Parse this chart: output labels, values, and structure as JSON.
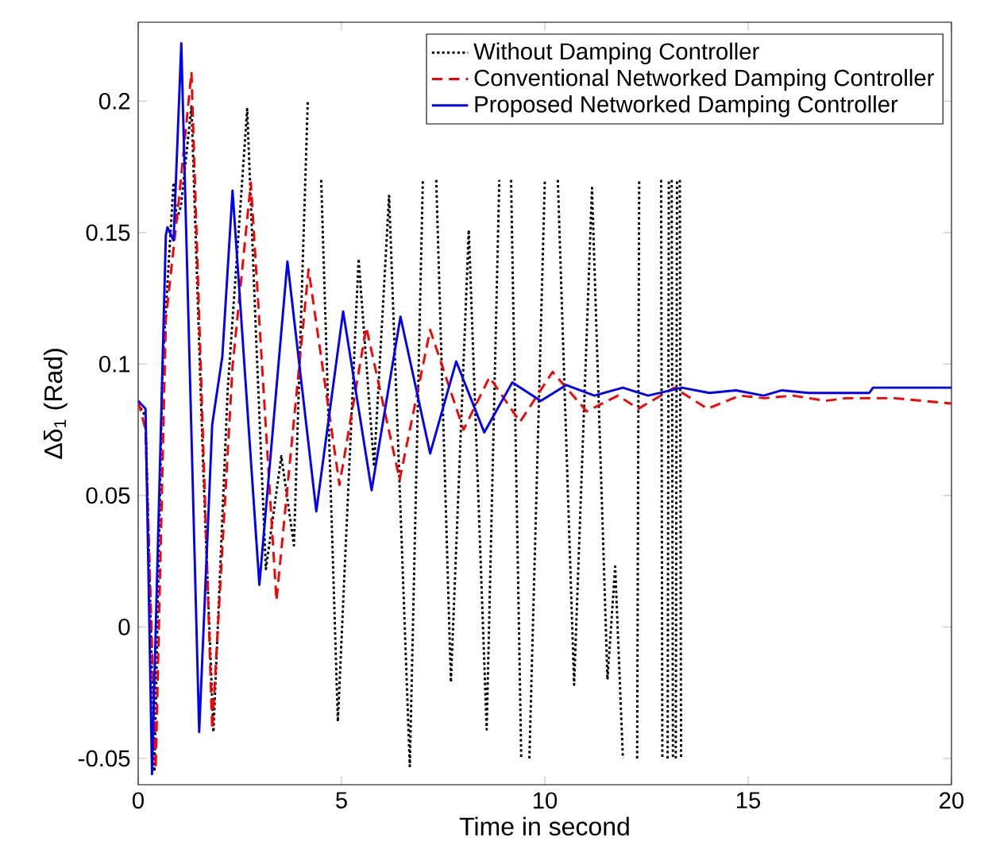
{
  "chart_data": {
    "type": "line",
    "xlabel": "Time in second",
    "ylabel": "Δδ$_{1}$  (Rad)",
    "xlim": [
      0,
      20
    ],
    "ylim": [
      -0.06,
      0.23
    ],
    "xticks": [
      0,
      5,
      10,
      15,
      20
    ],
    "yticks": [
      -0.05,
      0,
      0.05,
      0.1,
      0.15,
      0.2
    ],
    "legend": "top right",
    "series": [
      {
        "name": "Without Damping Controller",
        "color": "#000000",
        "line_style": "dotted",
        "x": [
          0,
          0.18,
          0.4,
          0.6,
          0.87,
          0.95,
          1.05,
          1.31,
          1.6,
          1.85,
          2.2,
          2.68,
          2.9,
          3.14,
          3.52,
          3.83,
          4.17,
          4.3,
          4.5,
          4.91,
          5.42,
          5.8,
          6.17,
          6.68,
          7.0,
          7.15,
          7.33,
          7.69,
          8.13,
          8.57,
          8.88,
          9.0,
          9.17,
          9.42,
          9.5,
          9.62,
          10.0,
          10.15,
          10.32,
          10.72,
          11.16,
          11.54,
          11.73,
          11.92,
          12.1,
          12.27,
          12.32,
          12.6,
          12.86,
          12.89,
          12.95,
          13.02,
          13.05,
          13.08,
          13.12,
          13.15,
          13.18,
          13.22,
          13.25,
          13.28,
          13.32,
          13.35
        ],
        "values": [
          0.085,
          0.08,
          -0.055,
          0.1,
          0.169,
          0.155,
          0.16,
          0.198,
          0.06,
          -0.04,
          0.09,
          0.197,
          0.11,
          0.022,
          0.065,
          0.031,
          0.2,
          null,
          0.17,
          -0.036,
          0.14,
          0.061,
          0.164,
          -0.053,
          0.17,
          null,
          0.17,
          -0.021,
          0.151,
          -0.039,
          0.17,
          null,
          0.17,
          -0.05,
          null,
          -0.05,
          0.17,
          null,
          0.17,
          -0.022,
          0.167,
          -0.02,
          0.023,
          -0.05,
          null,
          -0.05,
          0.17,
          null,
          0.17,
          -0.05,
          null,
          -0.05,
          0.17,
          null,
          0.17,
          -0.05,
          null,
          -0.05,
          0.17,
          null,
          0.17,
          -0.05
        ]
      },
      {
        "name": "Conventional Networked Damping Controller",
        "color": "#ff0000",
        "line_style": "dashed",
        "x": [
          0,
          0.18,
          0.43,
          0.68,
          0.99,
          1.31,
          1.82,
          2.32,
          2.77,
          3.4,
          4.19,
          4.95,
          5.61,
          6.43,
          7.18,
          8.0,
          8.64,
          9.39,
          10.19,
          11.03,
          11.8,
          12.3,
          13.18,
          14.0,
          14.8,
          15.4,
          16.1,
          16.9,
          17.4,
          18.6,
          20
        ],
        "values": [
          0.086,
          0.075,
          -0.054,
          0.117,
          0.161,
          0.211,
          -0.039,
          0.099,
          0.169,
          0.01,
          0.136,
          0.054,
          0.114,
          0.056,
          0.113,
          0.075,
          0.095,
          0.078,
          0.097,
          0.082,
          0.088,
          0.083,
          0.091,
          0.083,
          0.088,
          0.087,
          0.088,
          0.086,
          0.087,
          0.087,
          0.085
        ]
      },
      {
        "name": "Proposed Networked Damping Controller",
        "color": "#0000ff",
        "line_style": "solid",
        "x": [
          0,
          0.18,
          0.34,
          0.68,
          0.72,
          0.87,
          1.06,
          1.5,
          1.82,
          2.07,
          2.32,
          2.98,
          3.67,
          4.38,
          5.04,
          5.74,
          6.45,
          7.18,
          7.82,
          8.51,
          9.2,
          9.9,
          10.53,
          11.22,
          11.92,
          12.54,
          13.37,
          14.05,
          14.7,
          15.38,
          15.83,
          16.5,
          17.98,
          18.07,
          20
        ],
        "values": [
          0.086,
          0.083,
          -0.056,
          0.149,
          0.152,
          0.147,
          0.222,
          -0.04,
          0.077,
          0.103,
          0.166,
          0.016,
          0.139,
          0.044,
          0.12,
          0.052,
          0.118,
          0.066,
          0.101,
          0.074,
          0.093,
          0.086,
          0.092,
          0.088,
          0.091,
          0.088,
          0.091,
          0.089,
          0.09,
          0.088,
          0.09,
          0.089,
          0.089,
          0.091,
          0.091
        ]
      }
    ]
  }
}
